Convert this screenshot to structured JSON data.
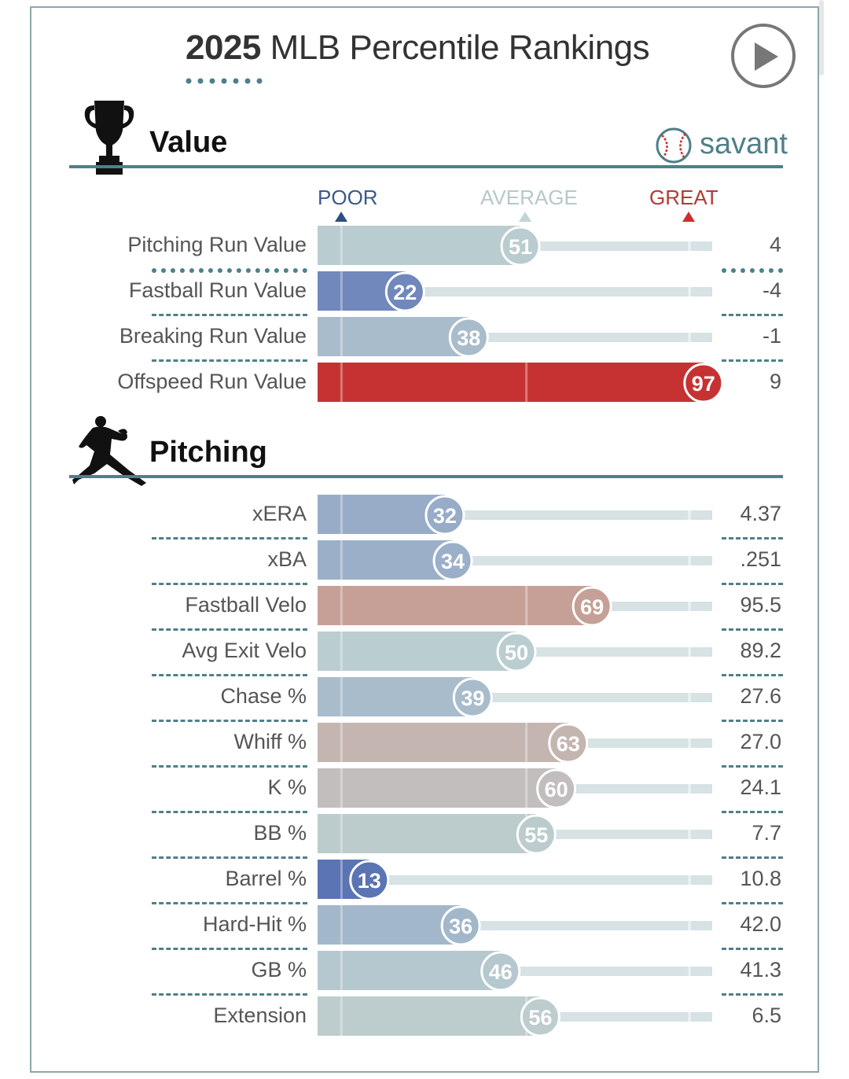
{
  "header": {
    "title_year": "2025",
    "title_rest": "MLB Percentile Rankings",
    "play_icon": "play-icon",
    "brand": "savant",
    "brand_icon": "baseball-icon"
  },
  "sections": {
    "value": {
      "title": "Value",
      "icon": "trophy-icon"
    },
    "pitching": {
      "title": "Pitching",
      "icon": "pitcher-icon"
    }
  },
  "legend": {
    "poor": "POOR",
    "average": "AVERAGE",
    "great": "GREAT"
  },
  "colors": {
    "accent": "#4e8089",
    "poor": "#1f4e8c",
    "average": "#b9ccd0",
    "great": "#c9302c",
    "track": "#d6e2e4"
  },
  "chart_data": {
    "type": "bar",
    "title": "2025 MLB Percentile Rankings",
    "xlim": [
      0,
      100
    ],
    "groups": [
      {
        "name": "Value",
        "rows": [
          {
            "label": "Pitching Run Value",
            "percentile": 51,
            "value": "4",
            "color": "#b9ccd0"
          },
          {
            "label": "Fastball Run Value",
            "percentile": 22,
            "value": "-4",
            "color": "#7088bb"
          },
          {
            "label": "Breaking Run Value",
            "percentile": 38,
            "value": "-1",
            "color": "#a9bccb"
          },
          {
            "label": "Offspeed Run Value",
            "percentile": 97,
            "value": "9",
            "color": "#c63232"
          }
        ]
      },
      {
        "name": "Pitching",
        "rows": [
          {
            "label": "xERA",
            "percentile": 32,
            "value": "4.37",
            "color": "#98acc8"
          },
          {
            "label": "xBA",
            "percentile": 34,
            "value": ".251",
            "color": "#9bb0c8"
          },
          {
            "label": "Fastball Velo",
            "percentile": 69,
            "value": "95.5",
            "color": "#c6a096"
          },
          {
            "label": "Avg Exit Velo",
            "percentile": 50,
            "value": "89.2",
            "color": "#bacdd0"
          },
          {
            "label": "Chase %",
            "percentile": 39,
            "value": "27.6",
            "color": "#a9bccc"
          },
          {
            "label": "Whiff %",
            "percentile": 63,
            "value": "27.0",
            "color": "#c4b5b1"
          },
          {
            "label": "K %",
            "percentile": 60,
            "value": "24.1",
            "color": "#c2bebe"
          },
          {
            "label": "BB %",
            "percentile": 55,
            "value": "7.7",
            "color": "#bccccc"
          },
          {
            "label": "Barrel %",
            "percentile": 13,
            "value": "10.8",
            "color": "#5a74b4"
          },
          {
            "label": "Hard-Hit %",
            "percentile": 36,
            "value": "42.0",
            "color": "#a3b7cb"
          },
          {
            "label": "GB %",
            "percentile": 46,
            "value": "41.3",
            "color": "#b5c8cf"
          },
          {
            "label": "Extension",
            "percentile": 56,
            "value": "6.5",
            "color": "#bdcccc"
          }
        ]
      }
    ]
  }
}
